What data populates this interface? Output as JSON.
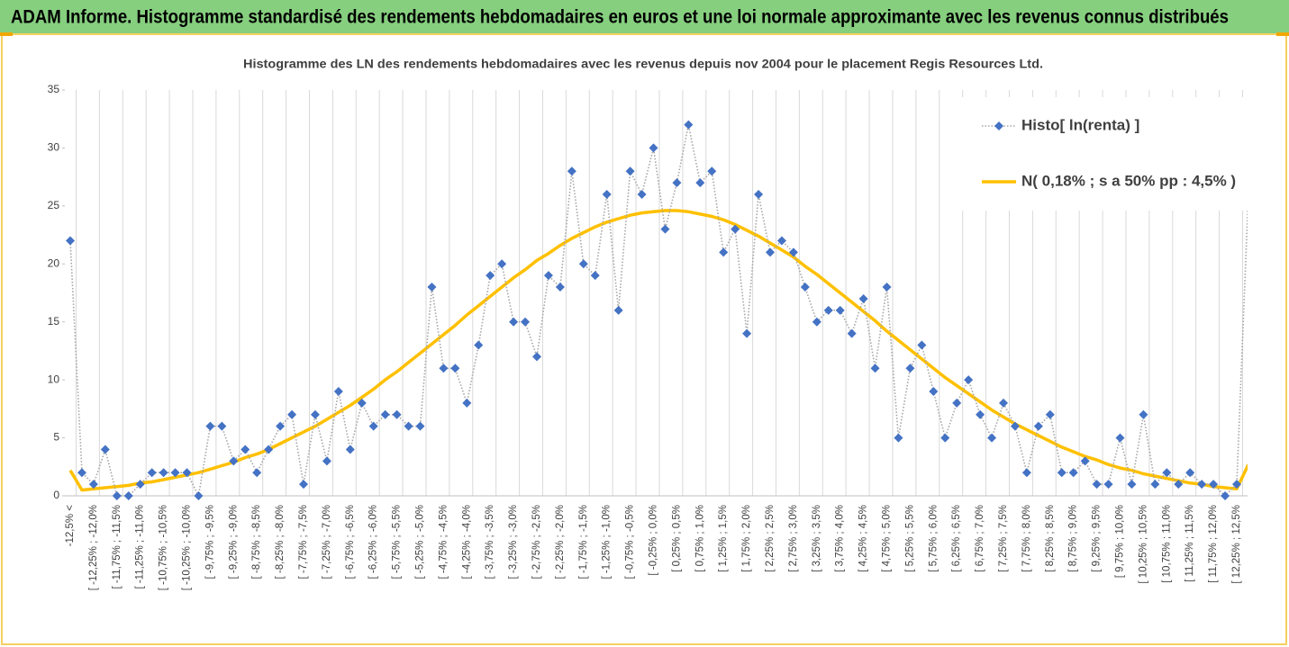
{
  "chart_data": {
    "type": "line",
    "title": "ADAM Informe. Histogramme standardisé des rendements hebdomadaires en euros et une loi normale approximante avec les revenus connus distribués",
    "subtitle": "Histogramme des LN des rendements hebdomadaires avec les revenus depuis nov 2004 pour le placement Regis Resources Ltd.",
    "categories": [
      "-12,5% <",
      null,
      "[ -12,25% ; -12,0%",
      null,
      "[ -11,75% ; -11,5%",
      null,
      "[ -11,25% ; -11,0%",
      null,
      "[ -10,75% ; -10,5%",
      null,
      "[ -10,25% ; -10,0%",
      null,
      "[ -9,75% ; -9,5%",
      null,
      "[ -9,25% ; -9,0%",
      null,
      "[ -8,75% ; -8,5%",
      null,
      "[ -8,25% ; -8,0%",
      null,
      "[ -7,75% ; -7,5%",
      null,
      "[ -7,25% ; -7,0%",
      null,
      "[ -6,75% ; -6,5%",
      null,
      "[ -6,25% ; -6,0%",
      null,
      "[ -5,75% ; -5,5%",
      null,
      "[ -5,25% ; -5,0%",
      null,
      "[ -4,75% ; -4,5%",
      null,
      "[ -4,25% ; -4,0%",
      null,
      "[ -3,75% ; -3,5%",
      null,
      "[ -3,25% ; -3,0%",
      null,
      "[ -2,75% ; -2,5%",
      null,
      "[ -2,25% ; -2,0%",
      null,
      "[ -1,75% ; -1,5%",
      null,
      "[ -1,25% ; -1,0%",
      null,
      "[ -0,75% ; -0,5%",
      null,
      "[ -0,25% ; 0,0%",
      null,
      "[ 0,25% ; 0,5%",
      null,
      "[ 0,75% ; 1,0%",
      null,
      "[ 1,25% ; 1,5%",
      null,
      "[ 1,75% ; 2,0%",
      null,
      "[ 2,25% ; 2,5%",
      null,
      "[ 2,75% ; 3,0%",
      null,
      "[ 3,25% ; 3,5%",
      null,
      "[ 3,75% ; 4,0%",
      null,
      "[ 4,25% ; 4,5%",
      null,
      "[ 4,75% ; 5,0%",
      null,
      "[ 5,25% ; 5,5%",
      null,
      "[ 5,75% ; 6,0%",
      null,
      "[ 6,25% ; 6,5%",
      null,
      "[ 6,75% ; 7,0%",
      null,
      "[ 7,25% ; 7,5%",
      null,
      "[ 7,75% ; 8,0%",
      null,
      "[ 8,25% ; 8,5%",
      null,
      "[ 8,75% ; 9,0%",
      null,
      "[ 9,25% ; 9,5%",
      null,
      "[ 9,75% ; 10,0%",
      null,
      "[ 10,25% ; 10,5%",
      null,
      "[ 10,75% ; 11,0%",
      null,
      "[ 11,25% ; 11,5%",
      null,
      "[ 11,75% ; 12,0%",
      null,
      "[ 12,25% ; 12,5%",
      null
    ],
    "series": [
      {
        "name": "Histo[ ln(renta) ]",
        "color": "#4472c4",
        "line_color": "#a5a5a5",
        "line_style": "dotted",
        "marker": "diamond",
        "values": [
          22,
          2,
          1,
          4,
          0,
          0,
          1,
          2,
          2,
          2,
          2,
          0,
          6,
          6,
          3,
          4,
          2,
          4,
          6,
          7,
          1,
          7,
          3,
          9,
          4,
          8,
          6,
          7,
          7,
          6,
          6,
          18,
          11,
          11,
          8,
          13,
          19,
          20,
          15,
          15,
          12,
          19,
          18,
          28,
          20,
          19,
          26,
          16,
          28,
          26,
          30,
          23,
          27,
          32,
          27,
          28,
          21,
          23,
          14,
          26,
          21,
          22,
          21,
          18,
          15,
          16,
          16,
          14,
          17,
          11,
          18,
          5,
          11,
          13,
          9,
          5,
          8,
          10,
          7,
          5,
          8,
          6,
          2,
          6,
          7,
          2,
          2,
          3,
          1,
          1,
          5,
          1,
          7,
          1,
          2,
          1,
          2,
          1,
          1,
          0,
          1,
          26
        ]
      },
      {
        "name": "N( 0,18% ; s a 50% pp : 4,5% )",
        "color": "#ffc000",
        "line_style": "solid",
        "marker": "none",
        "values": [
          2.2,
          0.5,
          0.6,
          0.7,
          0.8,
          0.9,
          1.1,
          1.2,
          1.4,
          1.6,
          1.8,
          2.0,
          2.3,
          2.6,
          2.9,
          3.3,
          3.6,
          4.0,
          4.5,
          5.0,
          5.5,
          6.0,
          6.6,
          7.2,
          7.8,
          8.5,
          9.2,
          10.0,
          10.7,
          11.5,
          12.3,
          13.1,
          13.9,
          14.7,
          15.6,
          16.4,
          17.2,
          18.0,
          18.8,
          19.5,
          20.3,
          20.9,
          21.6,
          22.2,
          22.7,
          23.2,
          23.6,
          23.9,
          24.2,
          24.4,
          24.5,
          24.6,
          24.6,
          24.5,
          24.3,
          24.1,
          23.8,
          23.4,
          22.9,
          22.4,
          21.8,
          21.2,
          20.6,
          19.8,
          19.1,
          18.3,
          17.5,
          16.7,
          15.9,
          15.1,
          14.2,
          13.4,
          12.6,
          11.8,
          11.0,
          10.2,
          9.5,
          8.8,
          8.1,
          7.4,
          6.8,
          6.2,
          5.7,
          5.2,
          4.7,
          4.2,
          3.8,
          3.4,
          3.1,
          2.7,
          2.4,
          2.2,
          1.9,
          1.7,
          1.5,
          1.3,
          1.1,
          1.0,
          0.8,
          0.7,
          0.6,
          2.7
        ]
      }
    ],
    "ylim": [
      0,
      35
    ],
    "yticks": [
      0,
      5,
      10,
      15,
      20,
      25,
      30,
      35
    ],
    "grid": "vertical",
    "legend": "top-right"
  }
}
